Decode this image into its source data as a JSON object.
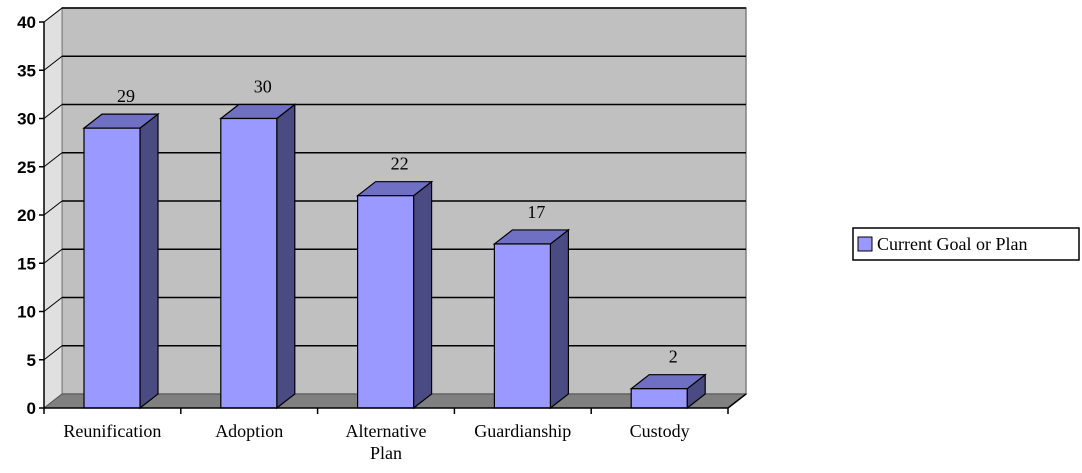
{
  "chart_data": {
    "type": "bar",
    "style": "3d-column",
    "categories": [
      "Reunification",
      "Adoption",
      "Alternative Plan",
      "Guardianship",
      "Custody"
    ],
    "series": [
      {
        "name": "Current Goal or Plan",
        "values": [
          29,
          30,
          22,
          17,
          2
        ]
      }
    ],
    "data_labels": [
      "29",
      "30",
      "22",
      "17",
      "2"
    ],
    "ylim": [
      0,
      40
    ],
    "yticks": [
      "0",
      "5",
      "10",
      "15",
      "20",
      "25",
      "30",
      "35",
      "40"
    ],
    "grid": true,
    "legend_position": "right",
    "colors": {
      "bar_front": "#9999FF",
      "bar_side": "#4B4B83",
      "bar_top": "#6F6FC4",
      "plot_back": "#C0C0C0",
      "floor": "#808080",
      "wall_side": "#E0E0E0"
    }
  }
}
